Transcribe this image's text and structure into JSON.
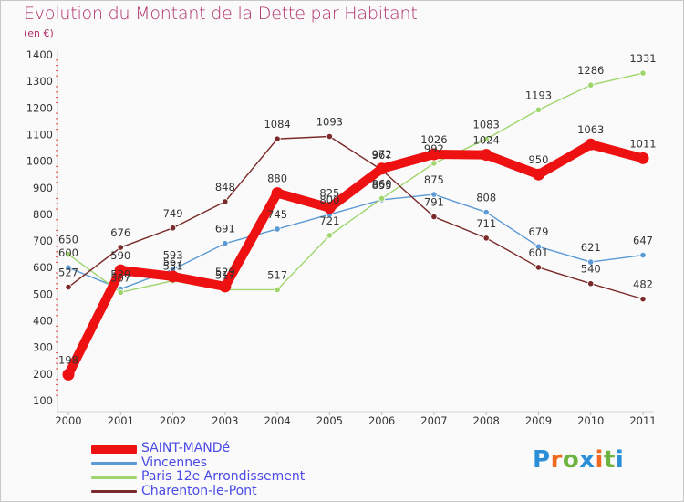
{
  "header": {
    "title": "Evolution du Montant de la Dette par Habitant",
    "unit": "(en €)"
  },
  "logo": {
    "letters": [
      "P",
      "r",
      "o",
      "x",
      "i",
      "t",
      "i"
    ],
    "colors": [
      "#2a8fd6",
      "#ef6a1e",
      "#6db33f",
      "#2a8fd6",
      "#ef6a1e",
      "#6db33f",
      "#2a8fd6"
    ]
  },
  "chart_data": {
    "type": "line",
    "x": [
      2000,
      2001,
      2002,
      2003,
      2004,
      2005,
      2006,
      2007,
      2008,
      2009,
      2010,
      2011
    ],
    "ylim": [
      100,
      1400
    ],
    "yticks": [
      100,
      200,
      300,
      400,
      500,
      600,
      700,
      800,
      900,
      1000,
      1100,
      1200,
      1300,
      1400
    ],
    "grid": false,
    "legend_position": "bottom-left",
    "series": [
      {
        "name": "SAINT-MANDé",
        "color": "#ee1111",
        "width": 10,
        "values": [
          198,
          590,
          567,
          529,
          880,
          825,
          972,
          1026,
          1024,
          950,
          1063,
          1011
        ]
      },
      {
        "name": "Vincennes",
        "color": "#5b9ad4",
        "width": 1.4,
        "values": [
          600,
          520,
          593,
          691,
          745,
          800,
          855,
          875,
          808,
          679,
          621,
          647
        ]
      },
      {
        "name": "Paris 12e  Arrondissement",
        "color": "#9ed66d",
        "width": 1.4,
        "values": [
          650,
          507,
          551,
          517,
          517,
          721,
          860,
          992,
          1083,
          1193,
          1286,
          1331
        ]
      },
      {
        "name": "Charenton-le-Pont",
        "color": "#7a2a2a",
        "width": 1.4,
        "values": [
          527,
          676,
          749,
          848,
          1084,
          1093,
          967,
          791,
          711,
          601,
          540,
          482
        ]
      }
    ]
  }
}
